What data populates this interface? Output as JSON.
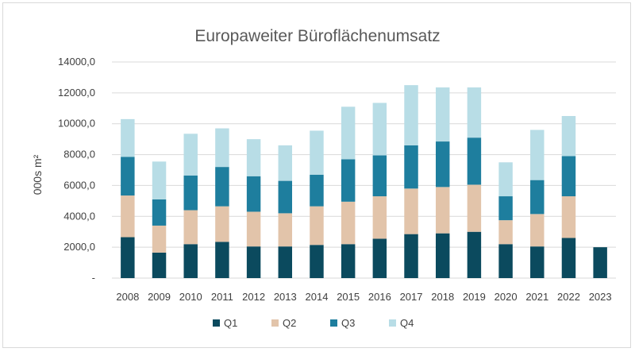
{
  "chart_data": {
    "type": "bar",
    "stacked": true,
    "title": "Europaweiter Büroflächenumsatz",
    "xlabel": "",
    "ylabel": "000s m²",
    "ylim": [
      0,
      14000
    ],
    "yticks": [
      {
        "value": 0,
        "label": "-"
      },
      {
        "value": 2000,
        "label": "2000,0"
      },
      {
        "value": 4000,
        "label": "4000,0"
      },
      {
        "value": 6000,
        "label": "6000,0"
      },
      {
        "value": 8000,
        "label": "8000,0"
      },
      {
        "value": 10000,
        "label": "10000,0"
      },
      {
        "value": 12000,
        "label": "12000,0"
      },
      {
        "value": 14000,
        "label": "14000,0"
      }
    ],
    "grid": true,
    "legend_position": "bottom",
    "categories": [
      "2008",
      "2009",
      "2010",
      "2011",
      "2012",
      "2013",
      "2014",
      "2015",
      "2016",
      "2017",
      "2018",
      "2019",
      "2020",
      "2021",
      "2022",
      "2023"
    ],
    "series": [
      {
        "name": "Q1",
        "color": "#0b4a5e",
        "values": [
          2650,
          1650,
          2200,
          2350,
          2050,
          2050,
          2150,
          2200,
          2550,
          2850,
          2900,
          3000,
          2200,
          2050,
          2600,
          2000
        ]
      },
      {
        "name": "Q2",
        "color": "#e2c4aa",
        "values": [
          2700,
          1750,
          2200,
          2300,
          2250,
          2150,
          2500,
          2750,
          2750,
          2950,
          3000,
          3050,
          1550,
          2100,
          2700,
          0
        ]
      },
      {
        "name": "Q3",
        "color": "#1e7e9e",
        "values": [
          2500,
          1700,
          2250,
          2550,
          2300,
          2100,
          2050,
          2750,
          2650,
          2800,
          2950,
          3050,
          1550,
          2200,
          2600,
          0
        ]
      },
      {
        "name": "Q4",
        "color": "#b8dde6",
        "values": [
          2450,
          2450,
          2700,
          2500,
          2400,
          2300,
          2850,
          3400,
          3400,
          3900,
          3500,
          3250,
          2200,
          3250,
          2600,
          0
        ]
      }
    ]
  }
}
